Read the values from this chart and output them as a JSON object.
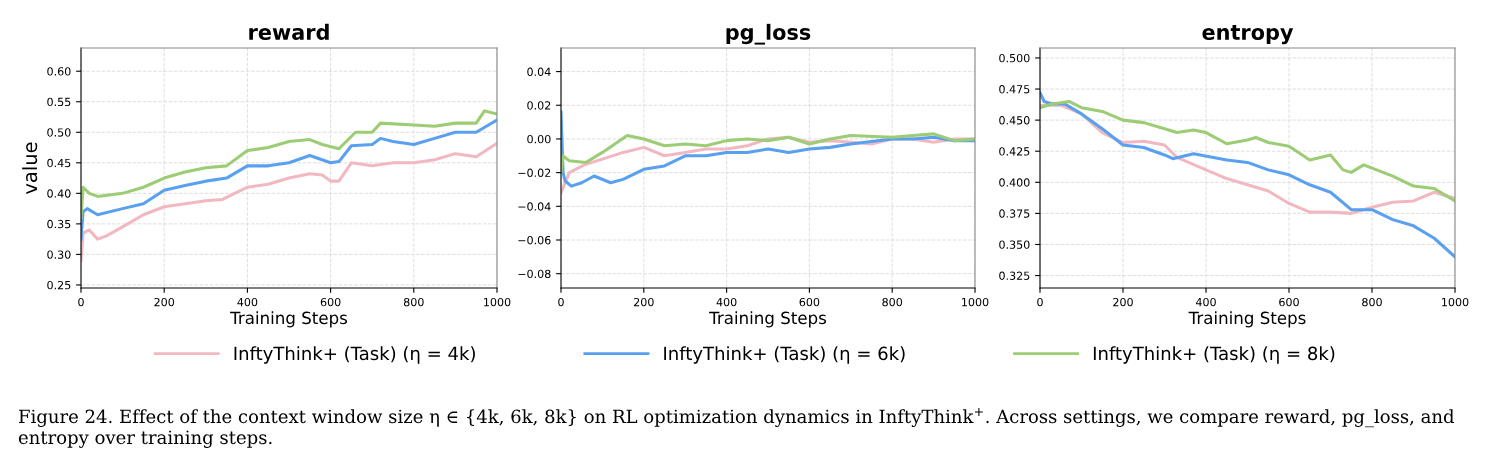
{
  "chart_data": [
    {
      "type": "line",
      "title": "reward",
      "xlabel": "Training Steps",
      "ylabel": "value",
      "xlim": [
        0,
        1000
      ],
      "xticks": [
        0,
        200,
        400,
        600,
        800,
        1000
      ],
      "ylim": [
        0.245,
        0.638
      ],
      "yticks": [
        {
          "value": 0.25,
          "label": "0.25"
        },
        {
          "value": 0.3,
          "label": "0.30"
        },
        {
          "value": 0.35,
          "label": "0.35"
        },
        {
          "value": 0.4,
          "label": "0.40"
        },
        {
          "value": 0.45,
          "label": "0.45"
        },
        {
          "value": 0.5,
          "label": "0.50"
        },
        {
          "value": 0.55,
          "label": "0.55"
        },
        {
          "value": 0.6,
          "label": "0.60"
        }
      ],
      "grid": true,
      "legend": "bottom",
      "line_style": "solid",
      "series": [
        {
          "name": "InftyThink+ (Task) (η = 4k)",
          "color": "#f2b8c2",
          "x": [
            0,
            5,
            20,
            40,
            60,
            100,
            150,
            200,
            250,
            300,
            340,
            400,
            450,
            500,
            550,
            580,
            600,
            620,
            650,
            700,
            750,
            800,
            850,
            900,
            950,
            1000
          ],
          "values": [
            0.29,
            0.335,
            0.34,
            0.325,
            0.33,
            0.345,
            0.365,
            0.378,
            0.383,
            0.388,
            0.39,
            0.41,
            0.415,
            0.425,
            0.432,
            0.43,
            0.42,
            0.42,
            0.45,
            0.445,
            0.45,
            0.45,
            0.455,
            0.465,
            0.46,
            0.482
          ]
        },
        {
          "name": "InftyThink+ (Task) (η = 6k)",
          "color": "#5aa0f0",
          "x": [
            0,
            5,
            15,
            40,
            100,
            150,
            200,
            250,
            300,
            350,
            400,
            450,
            500,
            550,
            600,
            620,
            650,
            700,
            720,
            750,
            800,
            850,
            900,
            950,
            1000
          ],
          "values": [
            0.325,
            0.37,
            0.375,
            0.365,
            0.375,
            0.383,
            0.405,
            0.413,
            0.42,
            0.425,
            0.445,
            0.445,
            0.45,
            0.462,
            0.45,
            0.452,
            0.478,
            0.48,
            0.49,
            0.485,
            0.48,
            0.49,
            0.5,
            0.5,
            0.52
          ]
        },
        {
          "name": "InftyThink+ (Task) (η = 8k)",
          "color": "#9ccc74",
          "x": [
            0,
            5,
            20,
            40,
            100,
            150,
            200,
            250,
            300,
            350,
            400,
            450,
            500,
            550,
            580,
            620,
            660,
            700,
            720,
            800,
            850,
            900,
            950,
            970,
            1000
          ],
          "values": [
            0.36,
            0.41,
            0.4,
            0.395,
            0.4,
            0.41,
            0.425,
            0.435,
            0.442,
            0.445,
            0.47,
            0.475,
            0.485,
            0.488,
            0.48,
            0.473,
            0.5,
            0.5,
            0.515,
            0.512,
            0.51,
            0.515,
            0.515,
            0.535,
            0.53
          ]
        }
      ],
      "annotations": [
        "Figure 24. Effect of the context window size η ∈ {4k, 6k, 8k} on RL optimization dynamics in InftyThink$^{+}$. Across settings, we compare reward, pg_loss, and entropy over training steps."
      ]
    },
    {
      "type": "line",
      "title": "pg_loss",
      "xlabel": "Training Steps",
      "xlim": [
        0,
        1000
      ],
      "xticks": [
        0,
        200,
        400,
        600,
        800,
        1000
      ],
      "ylim": [
        -0.0885,
        0.054
      ],
      "yticks": [
        {
          "value": -0.08,
          "label": "−0.08"
        },
        {
          "value": -0.06,
          "label": "−0.06"
        },
        {
          "value": -0.04,
          "label": "−0.04"
        },
        {
          "value": -0.02,
          "label": "−0.02"
        },
        {
          "value": 0.0,
          "label": "0.00"
        },
        {
          "value": 0.02,
          "label": "0.02"
        },
        {
          "value": 0.04,
          "label": "0.04"
        }
      ],
      "grid": true,
      "line_style": "solid",
      "series": [
        {
          "color": "#f2b8c2",
          "x": [
            0,
            20,
            60,
            100,
            150,
            200,
            250,
            300,
            350,
            400,
            450,
            500,
            550,
            600,
            650,
            700,
            750,
            800,
            850,
            900,
            950,
            1000
          ],
          "values": [
            -0.032,
            -0.02,
            -0.015,
            -0.012,
            -0.008,
            -0.005,
            -0.01,
            -0.008,
            -0.006,
            -0.006,
            -0.004,
            0.0,
            0.001,
            -0.002,
            -0.001,
            -0.002,
            -0.003,
            0.0,
            0.0,
            -0.002,
            0.0,
            0.0
          ]
        },
        {
          "color": "#5aa0f0",
          "x": [
            0,
            5,
            10,
            25,
            50,
            80,
            120,
            150,
            200,
            250,
            300,
            350,
            400,
            450,
            500,
            550,
            600,
            650,
            700,
            800,
            850,
            900,
            950,
            1000
          ],
          "values": [
            0.016,
            -0.02,
            -0.025,
            -0.028,
            -0.026,
            -0.022,
            -0.026,
            -0.024,
            -0.018,
            -0.016,
            -0.01,
            -0.01,
            -0.008,
            -0.008,
            -0.006,
            -0.008,
            -0.006,
            -0.005,
            -0.003,
            0.0,
            0.0,
            0.001,
            -0.001,
            -0.001
          ]
        },
        {
          "color": "#9ccc74",
          "x": [
            0,
            5,
            20,
            60,
            100,
            160,
            200,
            250,
            300,
            350,
            400,
            450,
            500,
            550,
            600,
            650,
            700,
            800,
            850,
            900,
            950,
            1000
          ],
          "values": [
            -0.02,
            -0.01,
            -0.013,
            -0.014,
            -0.008,
            0.002,
            0.0,
            -0.004,
            -0.003,
            -0.004,
            -0.001,
            0.0,
            -0.001,
            0.001,
            -0.003,
            0.0,
            0.002,
            0.001,
            0.002,
            0.003,
            -0.001,
            0.0
          ]
        }
      ]
    },
    {
      "type": "line",
      "title": "entropy",
      "xlabel": "Training Steps",
      "xlim": [
        0,
        1000
      ],
      "xticks": [
        0,
        200,
        400,
        600,
        800,
        1000
      ],
      "ylim": [
        0.315,
        0.508
      ],
      "yticks": [
        {
          "value": 0.325,
          "label": "0.325"
        },
        {
          "value": 0.35,
          "label": "0.350"
        },
        {
          "value": 0.375,
          "label": "0.375"
        },
        {
          "value": 0.4,
          "label": "0.400"
        },
        {
          "value": 0.425,
          "label": "0.425"
        },
        {
          "value": 0.45,
          "label": "0.450"
        },
        {
          "value": 0.475,
          "label": "0.475"
        },
        {
          "value": 0.5,
          "label": "0.500"
        }
      ],
      "grid": true,
      "line_style": "solid",
      "series": [
        {
          "color": "#f2b8c2",
          "x": [
            0,
            50,
            100,
            150,
            200,
            250,
            300,
            330,
            400,
            450,
            500,
            550,
            600,
            650,
            700,
            750,
            800,
            850,
            900,
            950,
            1000
          ],
          "values": [
            0.462,
            0.462,
            0.455,
            0.44,
            0.432,
            0.433,
            0.43,
            0.42,
            0.41,
            0.403,
            0.398,
            0.393,
            0.383,
            0.376,
            0.376,
            0.375,
            0.38,
            0.384,
            0.385,
            0.392,
            0.387
          ]
        },
        {
          "color": "#5aa0f0",
          "x": [
            0,
            10,
            30,
            60,
            100,
            150,
            200,
            250,
            300,
            320,
            370,
            450,
            500,
            550,
            600,
            650,
            700,
            750,
            800,
            850,
            900,
            950,
            1000
          ],
          "values": [
            0.472,
            0.465,
            0.463,
            0.463,
            0.455,
            0.443,
            0.43,
            0.428,
            0.422,
            0.419,
            0.423,
            0.418,
            0.416,
            0.41,
            0.406,
            0.398,
            0.392,
            0.378,
            0.378,
            0.37,
            0.365,
            0.355,
            0.34
          ]
        },
        {
          "color": "#9ccc74",
          "x": [
            0,
            30,
            70,
            100,
            150,
            200,
            250,
            300,
            330,
            370,
            400,
            450,
            500,
            520,
            550,
            600,
            650,
            700,
            730,
            750,
            780,
            850,
            900,
            950,
            1000
          ],
          "values": [
            0.46,
            0.463,
            0.465,
            0.46,
            0.457,
            0.45,
            0.448,
            0.443,
            0.44,
            0.442,
            0.44,
            0.431,
            0.434,
            0.436,
            0.432,
            0.429,
            0.418,
            0.422,
            0.41,
            0.408,
            0.414,
            0.405,
            0.397,
            0.395,
            0.385
          ]
        }
      ]
    }
  ]
}
